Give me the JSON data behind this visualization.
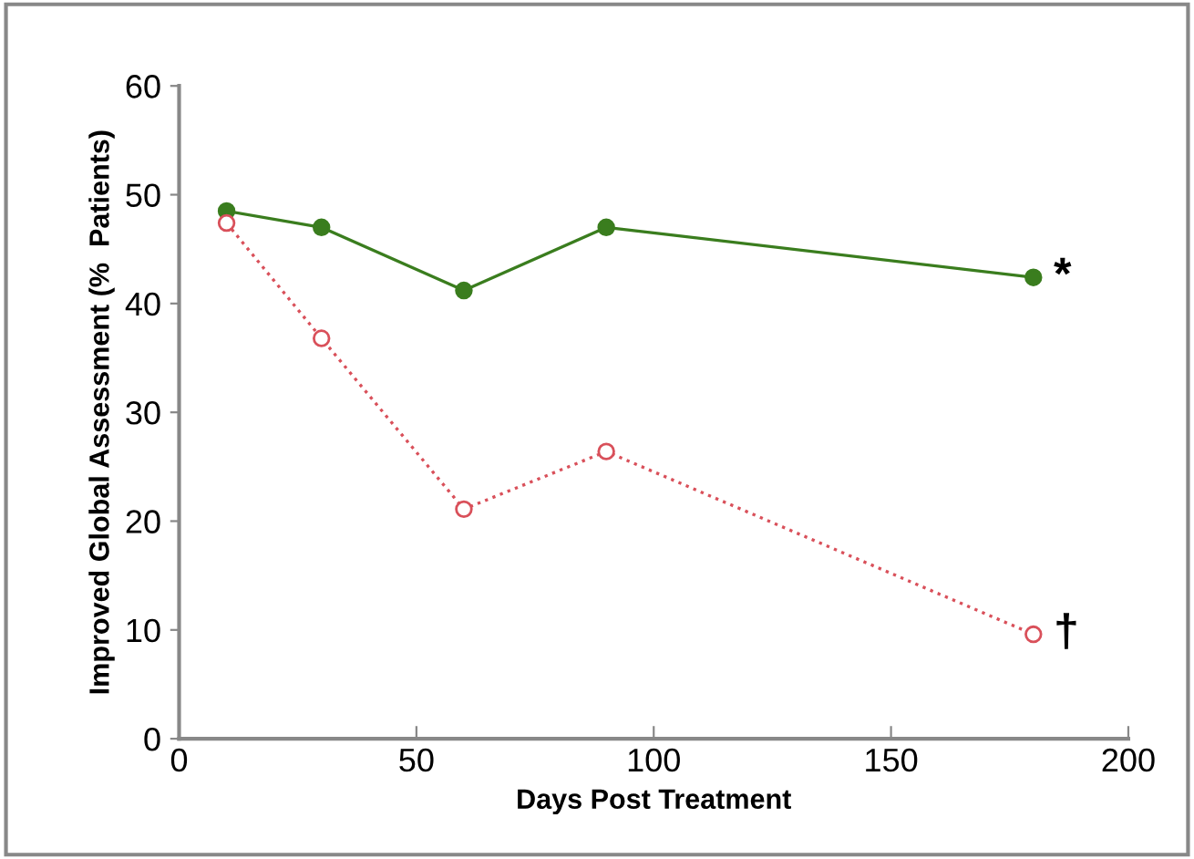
{
  "chart_data": {
    "type": "line",
    "xlabel": "Days Post Treatment",
    "ylabel": "Improved Global Assessment (%  Patients)",
    "x": [
      10,
      30,
      60,
      90,
      180
    ],
    "series": [
      {
        "color": "#3a7d1e",
        "values": [
          48.5,
          47.0,
          41.2,
          47.0,
          42.4
        ],
        "marker": "circle",
        "line_style": "solid"
      },
      {
        "color": "#d9505a",
        "values": [
          47.4,
          36.8,
          21.1,
          26.4,
          9.6
        ],
        "marker": "circle",
        "line_style": "dotted"
      }
    ],
    "annotations": [
      {
        "text": "*",
        "x": 180,
        "y": 42.4
      },
      {
        "text": "†",
        "x": 180,
        "y": 9.6
      }
    ],
    "xlim": [
      0,
      200
    ],
    "xticks": [
      0,
      50,
      100,
      150,
      200
    ],
    "ylim": [
      0,
      60
    ],
    "yticks": [
      0,
      10,
      20,
      30,
      40,
      50,
      60
    ],
    "grid": false,
    "legend": false
  }
}
